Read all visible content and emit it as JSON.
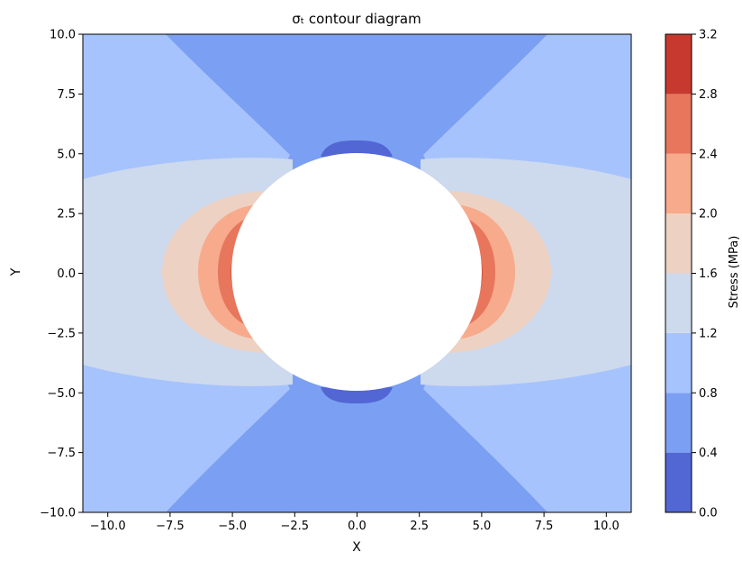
{
  "chart_data": {
    "type": "heatmap",
    "subtype": "filled-contour",
    "title": "σₜ contour diagram",
    "xlabel": "X",
    "ylabel": "Y",
    "xlim": [
      -11,
      11
    ],
    "ylim": [
      -10,
      10
    ],
    "xticks": [
      -10.0,
      -7.5,
      -5.0,
      -2.5,
      0.0,
      2.5,
      5.0,
      7.5,
      10.0
    ],
    "xtick_labels": [
      "−10.0",
      "−7.5",
      "−5.0",
      "−2.5",
      "0.0",
      "2.5",
      "5.0",
      "7.5",
      "10.0"
    ],
    "yticks": [
      -10.0,
      -7.5,
      -5.0,
      -2.5,
      0.0,
      2.5,
      5.0,
      7.5,
      10.0
    ],
    "ytick_labels": [
      "−10.0",
      "−7.5",
      "−5.0",
      "−2.5",
      "0.0",
      "2.5",
      "5.0",
      "7.5",
      "10.0"
    ],
    "hole": {
      "center": [
        0,
        0
      ],
      "radius": 5
    },
    "colorbar": {
      "label": "Stress (MPa)",
      "levels": [
        0.0,
        0.4,
        0.8,
        1.2,
        1.6,
        2.0,
        2.4,
        2.8,
        3.2
      ],
      "tick_labels": [
        "0.0",
        "0.4",
        "0.8",
        "1.2",
        "1.6",
        "2.0",
        "2.4",
        "2.8",
        "3.2"
      ],
      "colors": [
        "#5266d4",
        "#7b9ff2",
        "#a6c3fd",
        "#cdd9ec",
        "#edd1c2",
        "#f7aa8c",
        "#e7765c",
        "#c7392f"
      ],
      "background_color": "#3b4cc0"
    },
    "grid": false
  }
}
